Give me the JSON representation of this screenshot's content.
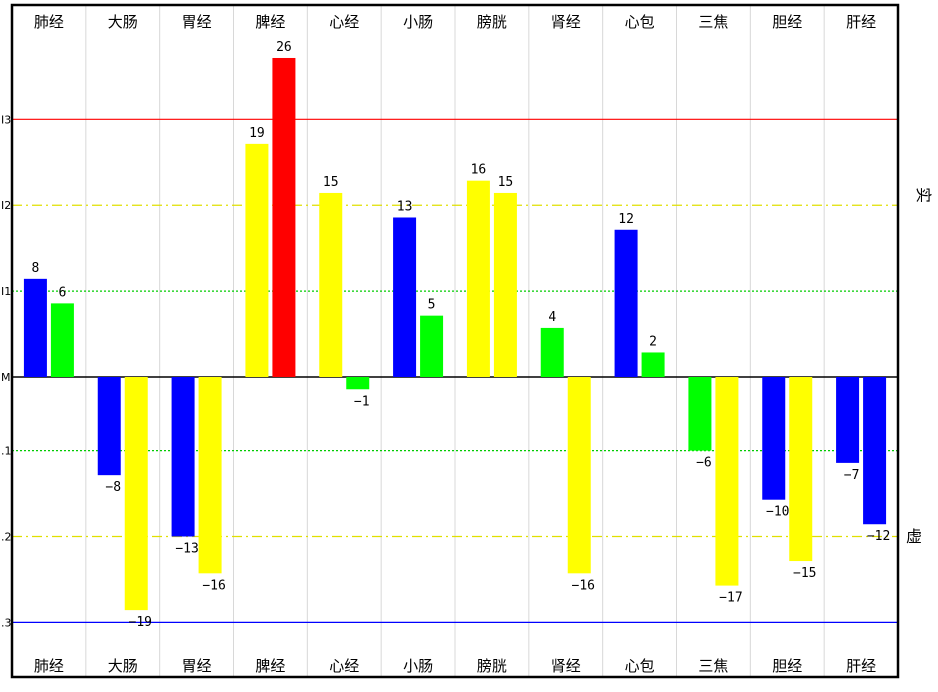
{
  "chart_data": {
    "type": "bar",
    "categories": [
      "肺经",
      "大肠",
      "胃经",
      "脾经",
      "心经",
      "小肠",
      "膀胱",
      "肾经",
      "心包",
      "三焦",
      "胆经",
      "肝经"
    ],
    "series": [
      {
        "values": [
          8,
          -8,
          -13,
          19,
          15,
          13,
          16,
          4,
          12,
          -6,
          -10,
          -7
        ],
        "colors": [
          "#0000ff",
          "#0000ff",
          "#0000ff",
          "#ffff00",
          "#ffff00",
          "#0000ff",
          "#ffff00",
          "#00ff00",
          "#0000ff",
          "#00ff00",
          "#0000ff",
          "#0000ff"
        ]
      },
      {
        "values": [
          6,
          -19,
          -16,
          26,
          -1,
          5,
          15,
          -16,
          2,
          -17,
          -15,
          -12
        ],
        "colors": [
          "#00ff00",
          "#ffff00",
          "#ffff00",
          "#ff0000",
          "#00ff00",
          "#00ff00",
          "#ffff00",
          "#ffff00",
          "#00ff00",
          "#ffff00",
          "#ffff00",
          "#0000ff"
        ]
      }
    ],
    "y_ticks": [
      {
        "value": 21,
        "label": "I3"
      },
      {
        "value": 14,
        "label": "I2"
      },
      {
        "value": 7,
        "label": "I1"
      },
      {
        "value": 0,
        "label": "M"
      },
      {
        "value": -6,
        "label": ".1"
      },
      {
        "value": -13,
        "label": ".2"
      },
      {
        "value": -20,
        "label": ".3"
      }
    ],
    "reference_lines": [
      {
        "value": 21,
        "color": "#ff0000",
        "style": "solid"
      },
      {
        "value": 14,
        "color": "#e0e000",
        "style": "dashdot"
      },
      {
        "value": 7,
        "color": "#00cc00",
        "style": "dotted"
      },
      {
        "value": -6,
        "color": "#00cc00",
        "style": "dotted"
      },
      {
        "value": -13,
        "color": "#e0e000",
        "style": "dashdot"
      },
      {
        "value": -20,
        "color": "#0000ff",
        "style": "solid"
      }
    ],
    "side_labels": {
      "upper": "实",
      "lower": "虚"
    },
    "ylim": [
      -24.4,
      30.6
    ],
    "grid": "vertical",
    "legend": "none"
  }
}
